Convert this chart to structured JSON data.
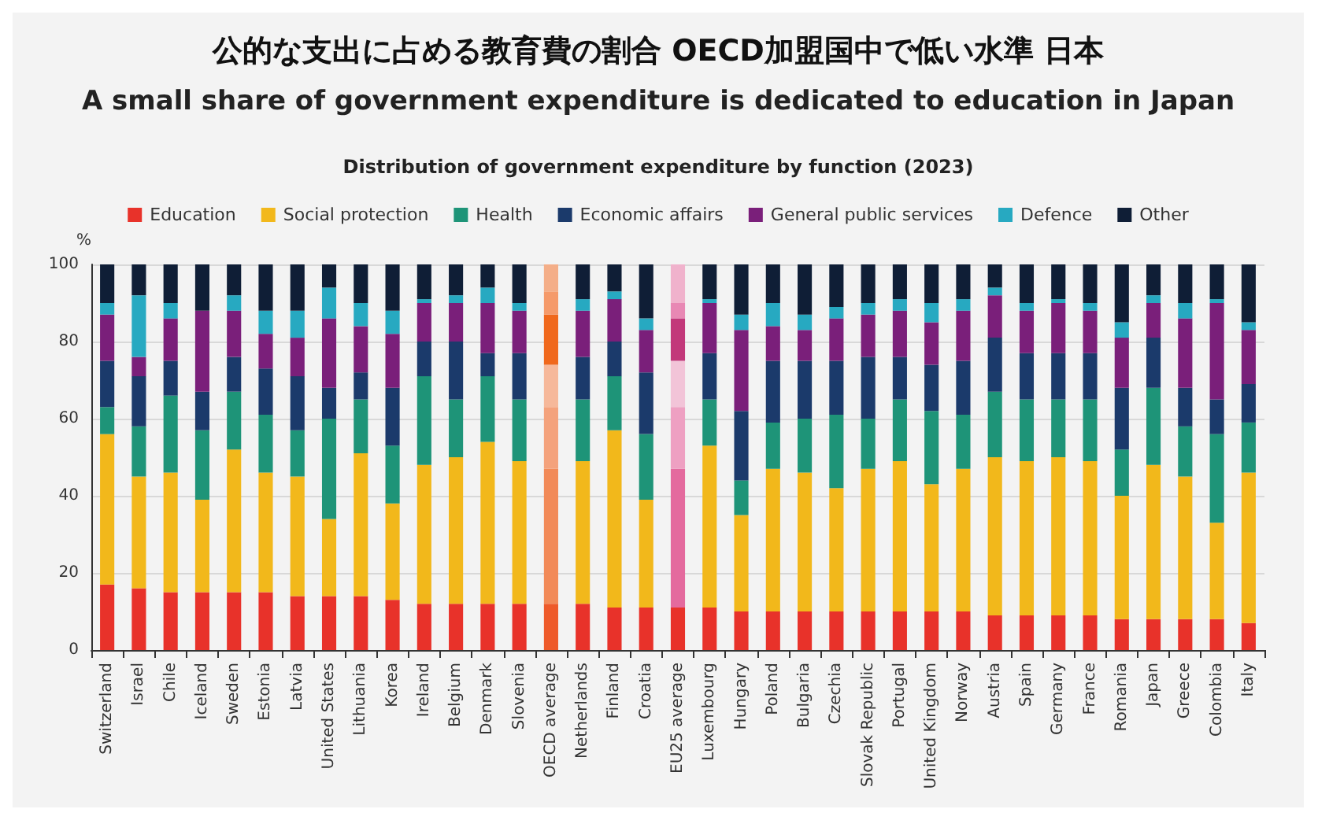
{
  "chart_data": {
    "type": "bar",
    "stacked": true,
    "title": "公的な支出に占める教育費の割合 OECD加盟国中で低い水準 日本",
    "subtitle": "A small share of government expenditure is dedicated to education in Japan",
    "annotations": [
      "Distribution of government expenditure by function (2023)"
    ],
    "ylabel": "%",
    "categories": [
      "Switzerland",
      "Israel",
      "Chile",
      "Iceland",
      "Sweden",
      "Estonia",
      "Latvia",
      "United States",
      "Lithuania",
      "Korea",
      "Ireland",
      "Belgium",
      "Denmark",
      "Slovenia",
      "OECD average",
      "Netherlands",
      "Finland",
      "Croatia",
      "EU25 average",
      "Luxembourg",
      "Hungary",
      "Poland",
      "Bulgaria",
      "Czechia",
      "Slovak Republic",
      "Portugal",
      "United Kingdom",
      "Norway",
      "Austria",
      "Spain",
      "Germany",
      "France",
      "Romania",
      "Japan",
      "Greece",
      "Colombia",
      "Italy"
    ],
    "ylim": [
      0,
      100
    ],
    "yticks": [
      0,
      20,
      40,
      60,
      80,
      100
    ],
    "grid": "y",
    "legend": "top",
    "series": [
      {
        "name": "Education",
        "color": "#e8322a",
        "values": [
          17,
          16,
          15,
          15,
          15,
          15,
          14,
          14,
          14,
          13,
          12,
          12,
          12,
          12,
          12,
          12,
          11,
          11,
          11,
          11,
          10,
          10,
          10,
          10,
          10,
          10,
          10,
          10,
          9,
          9,
          9,
          9,
          8,
          8,
          8,
          8,
          7
        ],
        "colors": [
          "#e8322a",
          "#e8322a",
          "#e8322a",
          "#e8322a",
          "#e8322a",
          "#e8322a",
          "#e8322a",
          "#e8322a",
          "#e8322a",
          "#e8322a",
          "#e8322a",
          "#e8322a",
          "#e8322a",
          "#e8322a",
          "#ee5a2a",
          "#e8322a",
          "#e8322a",
          "#e8322a",
          "#e8322a",
          "#e8322a",
          "#e8322a",
          "#e8322a",
          "#e8322a",
          "#e8322a",
          "#e8322a",
          "#e8322a",
          "#e8322a",
          "#e8322a",
          "#e8322a",
          "#e8322a",
          "#e8322a",
          "#e8322a",
          "#e8322a",
          "#e8322a",
          "#e8322a",
          "#e8322a",
          "#e8322a"
        ]
      },
      {
        "name": "Social protection",
        "color": "#f2b81b",
        "values": [
          39,
          29,
          31,
          24,
          37,
          31,
          31,
          20,
          37,
          25,
          36,
          38,
          42,
          37,
          35,
          37,
          46,
          28,
          36,
          42,
          25,
          37,
          36,
          32,
          37,
          39,
          33,
          37,
          41,
          40,
          41,
          40,
          32,
          40,
          37,
          25,
          39
        ],
        "colors": [
          "#f2b81b",
          "#f2b81b",
          "#f2b81b",
          "#f2b81b",
          "#f2b81b",
          "#f2b81b",
          "#f2b81b",
          "#f2b81b",
          "#f2b81b",
          "#f2b81b",
          "#f2b81b",
          "#f2b81b",
          "#f2b81b",
          "#f2b81b",
          "#f28a58",
          "#f2b81b",
          "#f2b81b",
          "#f2b81b",
          "#e46a9e",
          "#f2b81b",
          "#f2b81b",
          "#f2b81b",
          "#f2b81b",
          "#f2b81b",
          "#f2b81b",
          "#f2b81b",
          "#f2b81b",
          "#f2b81b",
          "#f2b81b",
          "#f2b81b",
          "#f2b81b",
          "#f2b81b",
          "#f2b81b",
          "#f2b81b",
          "#f2b81b",
          "#f2b81b",
          "#f2b81b"
        ]
      },
      {
        "name": "Health",
        "color": "#1e9478",
        "values": [
          7,
          13,
          20,
          18,
          15,
          15,
          12,
          26,
          14,
          15,
          23,
          15,
          17,
          16,
          16,
          16,
          14,
          17,
          16,
          12,
          9,
          12,
          14,
          19,
          13,
          16,
          19,
          14,
          17,
          16,
          15,
          16,
          12,
          20,
          13,
          23,
          13
        ],
        "colors": [
          "#1e9478",
          "#1e9478",
          "#1e9478",
          "#1e9478",
          "#1e9478",
          "#1e9478",
          "#1e9478",
          "#1e9478",
          "#1e9478",
          "#1e9478",
          "#1e9478",
          "#1e9478",
          "#1e9478",
          "#1e9478",
          "#f4a27c",
          "#1e9478",
          "#1e9478",
          "#1e9478",
          "#eea0c2",
          "#1e9478",
          "#1e9478",
          "#1e9478",
          "#1e9478",
          "#1e9478",
          "#1e9478",
          "#1e9478",
          "#1e9478",
          "#1e9478",
          "#1e9478",
          "#1e9478",
          "#1e9478",
          "#1e9478",
          "#1e9478",
          "#1e9478",
          "#1e9478",
          "#1e9478",
          "#1e9478"
        ]
      },
      {
        "name": "Economic affairs",
        "color": "#1b3a6b",
        "values": [
          12,
          13,
          9,
          10,
          9,
          12,
          14,
          8,
          7,
          15,
          9,
          15,
          6,
          12,
          11,
          11,
          9,
          16,
          12,
          12,
          18,
          16,
          15,
          14,
          16,
          11,
          12,
          14,
          14,
          12,
          12,
          12,
          16,
          13,
          10,
          9,
          10
        ],
        "colors": [
          "#1b3a6b",
          "#1b3a6b",
          "#1b3a6b",
          "#1b3a6b",
          "#1b3a6b",
          "#1b3a6b",
          "#1b3a6b",
          "#1b3a6b",
          "#1b3a6b",
          "#1b3a6b",
          "#1b3a6b",
          "#1b3a6b",
          "#1b3a6b",
          "#1b3a6b",
          "#f6b89a",
          "#1b3a6b",
          "#1b3a6b",
          "#1b3a6b",
          "#f2c4d8",
          "#1b3a6b",
          "#1b3a6b",
          "#1b3a6b",
          "#1b3a6b",
          "#1b3a6b",
          "#1b3a6b",
          "#1b3a6b",
          "#1b3a6b",
          "#1b3a6b",
          "#1b3a6b",
          "#1b3a6b",
          "#1b3a6b",
          "#1b3a6b",
          "#1b3a6b",
          "#1b3a6b",
          "#1b3a6b",
          "#1b3a6b",
          "#1b3a6b"
        ]
      },
      {
        "name": "General public services",
        "color": "#7a1f7a",
        "values": [
          12,
          5,
          11,
          21,
          12,
          9,
          10,
          18,
          12,
          14,
          10,
          10,
          13,
          11,
          13,
          12,
          11,
          11,
          11,
          13,
          21,
          9,
          8,
          11,
          11,
          12,
          11,
          13,
          11,
          11,
          13,
          11,
          13,
          9,
          18,
          25,
          14
        ],
        "colors": [
          "#7a1f7a",
          "#7a1f7a",
          "#7a1f7a",
          "#7a1f7a",
          "#7a1f7a",
          "#7a1f7a",
          "#7a1f7a",
          "#7a1f7a",
          "#7a1f7a",
          "#7a1f7a",
          "#7a1f7a",
          "#7a1f7a",
          "#7a1f7a",
          "#7a1f7a",
          "#f0681c",
          "#7a1f7a",
          "#7a1f7a",
          "#7a1f7a",
          "#c2387a",
          "#7a1f7a",
          "#7a1f7a",
          "#7a1f7a",
          "#7a1f7a",
          "#7a1f7a",
          "#7a1f7a",
          "#7a1f7a",
          "#7a1f7a",
          "#7a1f7a",
          "#7a1f7a",
          "#7a1f7a",
          "#7a1f7a",
          "#7a1f7a",
          "#7a1f7a",
          "#7a1f7a",
          "#7a1f7a",
          "#7a1f7a",
          "#7a1f7a"
        ]
      },
      {
        "name": "Defence",
        "color": "#27a9c1",
        "values": [
          3,
          16,
          4,
          0,
          4,
          6,
          7,
          8,
          6,
          6,
          1,
          2,
          4,
          2,
          6,
          3,
          2,
          3,
          4,
          1,
          4,
          6,
          4,
          3,
          3,
          3,
          5,
          3,
          2,
          2,
          1,
          2,
          4,
          2,
          4,
          1,
          2
        ],
        "colors": [
          "#27a9c1",
          "#27a9c1",
          "#27a9c1",
          "#27a9c1",
          "#27a9c1",
          "#27a9c1",
          "#27a9c1",
          "#27a9c1",
          "#27a9c1",
          "#27a9c1",
          "#27a9c1",
          "#27a9c1",
          "#27a9c1",
          "#27a9c1",
          "#f59a6a",
          "#27a9c1",
          "#27a9c1",
          "#27a9c1",
          "#e888b4",
          "#27a9c1",
          "#27a9c1",
          "#27a9c1",
          "#27a9c1",
          "#27a9c1",
          "#27a9c1",
          "#27a9c1",
          "#27a9c1",
          "#27a9c1",
          "#27a9c1",
          "#27a9c1",
          "#27a9c1",
          "#27a9c1",
          "#27a9c1",
          "#27a9c1",
          "#27a9c1",
          "#27a9c1",
          "#27a9c1"
        ]
      },
      {
        "name": "Other",
        "color": "#0f1e36",
        "values": [
          10,
          8,
          10,
          12,
          8,
          12,
          12,
          6,
          10,
          12,
          9,
          8,
          6,
          10,
          7,
          9,
          7,
          14,
          10,
          9,
          13,
          10,
          13,
          11,
          10,
          9,
          10,
          9,
          6,
          10,
          9,
          10,
          15,
          8,
          10,
          9,
          15
        ],
        "colors": [
          "#0f1e36",
          "#0f1e36",
          "#0f1e36",
          "#0f1e36",
          "#0f1e36",
          "#0f1e36",
          "#0f1e36",
          "#0f1e36",
          "#0f1e36",
          "#0f1e36",
          "#0f1e36",
          "#0f1e36",
          "#0f1e36",
          "#0f1e36",
          "#f4ae88",
          "#0f1e36",
          "#0f1e36",
          "#0f1e36",
          "#f0b2cc",
          "#0f1e36",
          "#0f1e36",
          "#0f1e36",
          "#0f1e36",
          "#0f1e36",
          "#0f1e36",
          "#0f1e36",
          "#0f1e36",
          "#0f1e36",
          "#0f1e36",
          "#0f1e36",
          "#0f1e36",
          "#0f1e36",
          "#0f1e36",
          "#0f1e36",
          "#0f1e36",
          "#0f1e36",
          "#0f1e36"
        ]
      }
    ]
  }
}
